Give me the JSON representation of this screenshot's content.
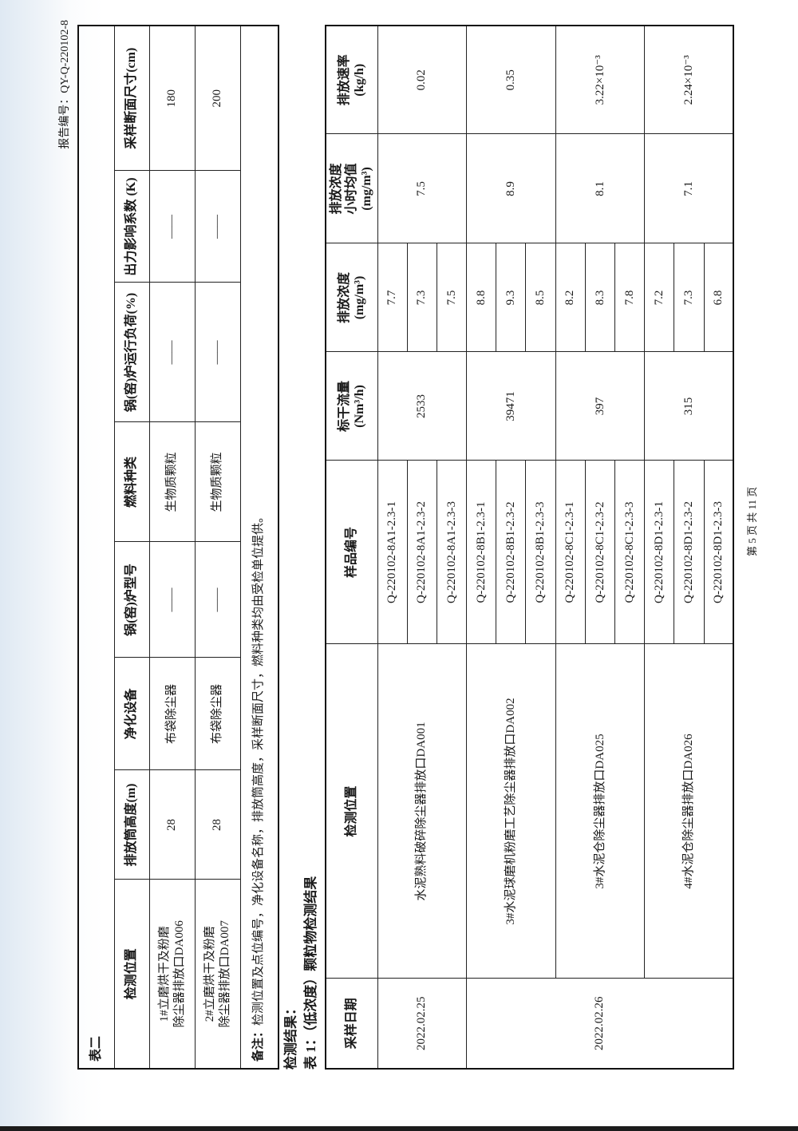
{
  "header": {
    "report_no": "报告编号：QY-Q-220102-8"
  },
  "table2": {
    "caption": "表二",
    "columns": [
      "检测位置",
      "排放筒高度(m)",
      "净化设备",
      "锅(窑)炉型号",
      "燃料种类",
      "锅(窑)炉运行负荷(%)",
      "出力影响系数 (K)",
      "采样断面尺寸(cm)"
    ],
    "rows": [
      {
        "location_line1": "1#立磨烘干及粉磨",
        "location_line2": "除尘器排放口DA006",
        "height": "28",
        "equipment": "布袋除尘器",
        "model": "——",
        "fuel": "生物质颗粒",
        "load": "——",
        "k": "——",
        "section": "180"
      },
      {
        "location_line1": "2#立磨烘干及粉磨",
        "location_line2": "除尘器排放口DA007",
        "height": "28",
        "equipment": "布袋除尘器",
        "model": "——",
        "fuel": "生物质颗粒",
        "load": "——",
        "k": "——",
        "section": "200"
      }
    ],
    "note_label": "备注：",
    "note_text": "检测位置及点位编号，净化设备名称，排放筒高度，采样断面尺寸，燃料种类均由受检单位提供。"
  },
  "results_heading": "检测结果：",
  "table1": {
    "title": "表 1：（低浓度）颗粒物检测结果",
    "columns": [
      "采样日期",
      "检测位置",
      "样品编号",
      "标干流量 (Nm³/h)",
      "排放浓度 (mg/m³)",
      "排放浓度小时均值 (mg/m³)",
      "排放速率 (kg/h)"
    ],
    "col_lines": {
      "flow": [
        "标干流量",
        "(Nm³/h)"
      ],
      "conc": [
        "排放浓度",
        "(mg/m³)"
      ],
      "avg": [
        "排放浓度",
        "小时均值",
        "(mg/m³)"
      ],
      "rate": [
        "排放速率",
        "(kg/h)"
      ]
    },
    "dates": [
      "2022.02.25",
      "2022.02.26"
    ],
    "groups": [
      {
        "location": "水泥熟料破碎除尘器排放口DA001",
        "samples": [
          "Q-220102-8A1-2.3-1",
          "Q-220102-8A1-2.3-2",
          "Q-220102-8A1-2.3-3"
        ],
        "flow": "2533",
        "conc": [
          "7.7",
          "7.3",
          "7.5"
        ],
        "avg": "7.5",
        "rate": "0.02"
      },
      {
        "location": "3#水泥球磨机粉磨工艺除尘器排放口DA002",
        "samples": [
          "Q-220102-8B1-2.3-1",
          "Q-220102-8B1-2.3-2",
          "Q-220102-8B1-2.3-3"
        ],
        "flow": "39471",
        "conc": [
          "8.8",
          "9.3",
          "8.5"
        ],
        "avg": "8.9",
        "rate": "0.35"
      },
      {
        "location": "3#水泥仓除尘器排放口DA025",
        "samples": [
          "Q-220102-8C1-2.3-1",
          "Q-220102-8C1-2.3-2",
          "Q-220102-8C1-2.3-3"
        ],
        "flow": "397",
        "conc": [
          "8.2",
          "8.3",
          "7.8"
        ],
        "avg": "8.1",
        "rate": "3.22×10⁻³"
      },
      {
        "location": "4#水泥仓除尘器排放口DA026",
        "samples": [
          "Q-220102-8D1-2.3-1",
          "Q-220102-8D1-2.3-2",
          "Q-220102-8D1-2.3-3"
        ],
        "flow": "315",
        "conc": [
          "7.2",
          "7.3",
          "6.8"
        ],
        "avg": "7.1",
        "rate": "2.24×10⁻³"
      }
    ]
  },
  "footer": {
    "page": "第 5 页 共 11 页"
  }
}
